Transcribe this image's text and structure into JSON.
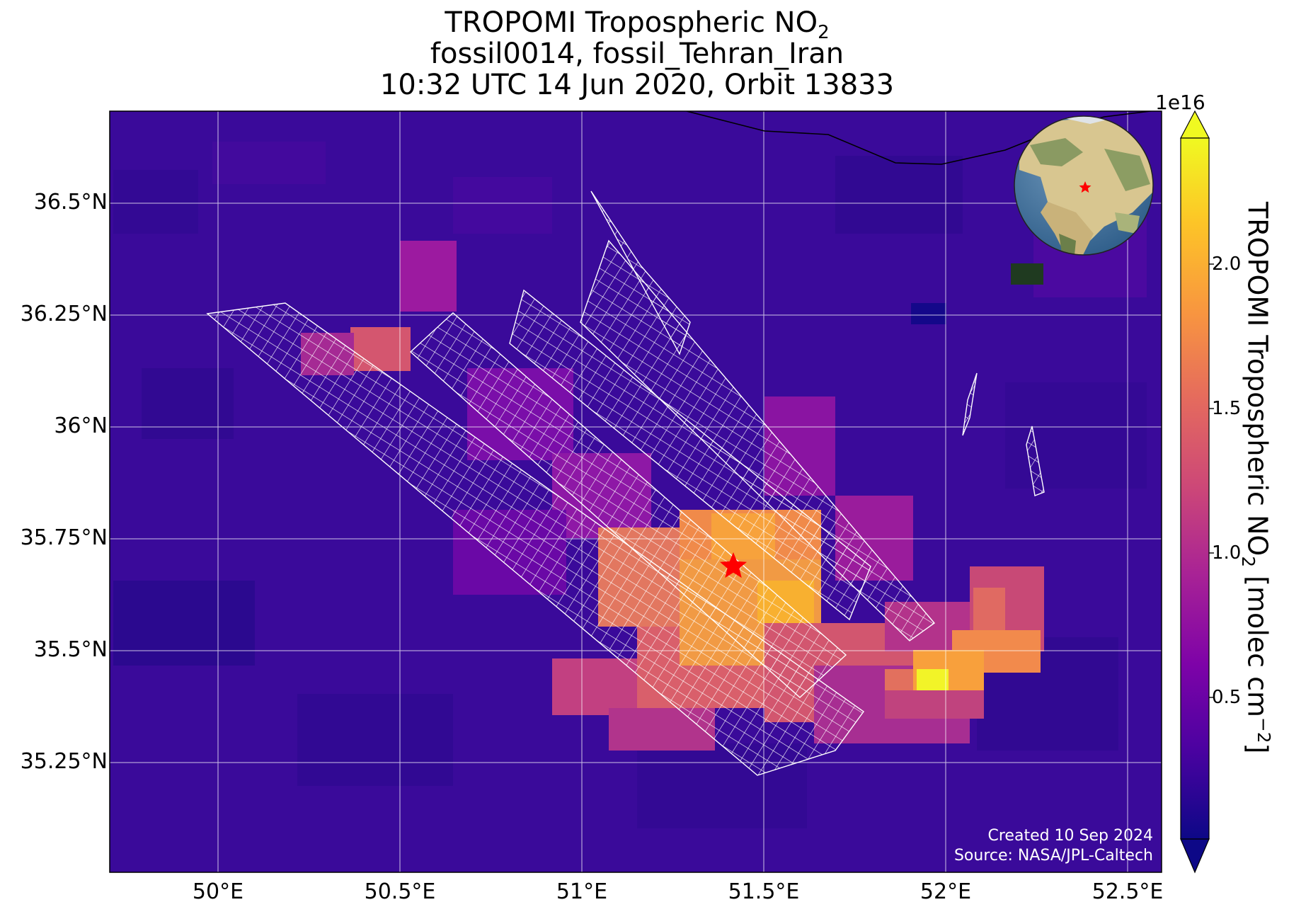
{
  "title": {
    "line1": "TROPOMI Tropospheric NO",
    "line1_sub": "2",
    "line2": "fossil0014, fossil_Tehran_Iran",
    "line3": "10:32 UTC 14 Jun 2020, Orbit 13833"
  },
  "map": {
    "lon_range": [
      49.7,
      52.6
    ],
    "lat_range": [
      35.0,
      36.7
    ],
    "lat_ticks": [
      "36.5°N",
      "36.25°N",
      "36°N",
      "35.75°N",
      "35.5°N",
      "35.25°N"
    ],
    "lon_ticks": [
      "50°E",
      "50.5°E",
      "51°E",
      "51.5°E",
      "52°E",
      "52.5°E"
    ],
    "target_marker": {
      "lon": 51.42,
      "lat": 35.69,
      "color": "#ff0000"
    },
    "colormap": "plasma",
    "credit_line1": "Created 10 Sep 2024",
    "credit_line2": "Source: NASA/JPL-Caltech"
  },
  "colorbar": {
    "exponent": "1e16",
    "ticks": [
      "0.5",
      "1.0",
      "1.5",
      "2.0"
    ],
    "label": "TROPOMI Tropospheric NO",
    "label_sub": "2",
    "label_unit": " [molec cm",
    "label_sup": "−2",
    "label_end": "]",
    "range": [
      0.0,
      2.35
    ]
  },
  "inset_globe": {
    "marker_color": "#ff0000"
  }
}
